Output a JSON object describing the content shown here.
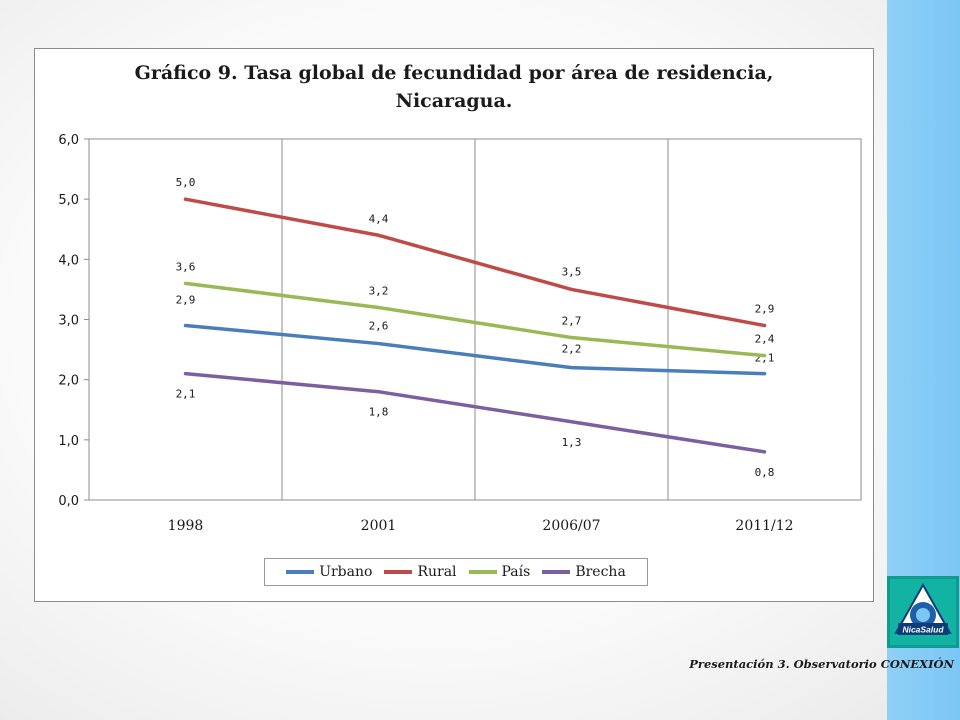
{
  "chart_data": {
    "type": "line",
    "title_lines": [
      "Gráfico 9. Tasa global de fecundidad por área de residencia,",
      "Nicaragua."
    ],
    "categories": [
      "1998",
      "2001",
      "2006/07",
      "2011/12"
    ],
    "ylim": [
      0,
      6
    ],
    "yticks": [
      "0,0",
      "1,0",
      "2,0",
      "3,0",
      "4,0",
      "5,0",
      "6,0"
    ],
    "grid": "vertical category dividers",
    "legend_position": "bottom",
    "series": [
      {
        "name": "Urbano",
        "color": "#4a7ebb",
        "values": [
          2.9,
          2.6,
          2.2,
          2.1
        ],
        "labels": [
          "2,9",
          "2,6",
          "2,2",
          "2,1"
        ]
      },
      {
        "name": "Rural",
        "color": "#be4b48",
        "values": [
          5.0,
          4.4,
          3.5,
          2.9
        ],
        "labels": [
          "5,0",
          "4,4",
          "3,5",
          "2,9"
        ]
      },
      {
        "name": "País",
        "color": "#98b954",
        "values": [
          3.6,
          3.2,
          2.7,
          2.4
        ],
        "labels": [
          "3,6",
          "3,2",
          "2,7",
          "2,4"
        ]
      },
      {
        "name": "Brecha",
        "color": "#7d5fa0",
        "values": [
          2.1,
          1.8,
          1.3,
          0.8
        ],
        "labels": [
          "2,1",
          "1,8",
          "1,3",
          "0,8"
        ]
      }
    ]
  },
  "footer": "Presentación 3. Observatorio CONEXIÓN",
  "logo": {
    "icon": "nicasalud-logo",
    "text": "NicaSalud",
    "color": "#12b3a3"
  }
}
